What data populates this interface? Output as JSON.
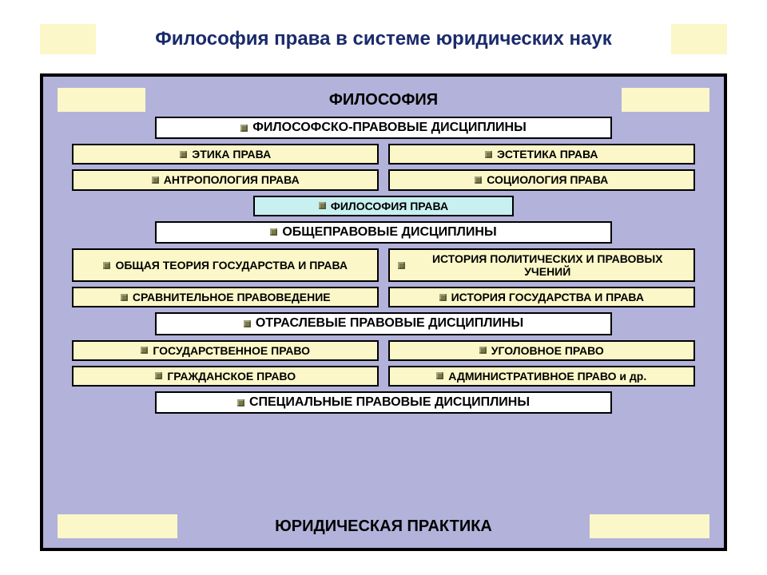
{
  "colors": {
    "page_bg": "#ffffff",
    "band": "#fbf7c8",
    "title_text": "#1a2a6b",
    "frame_bg": "#b2b2da",
    "frame_border": "#000000",
    "frame_border_width": 4,
    "box_cream": "#fbf7c8",
    "box_white": "#ffffff",
    "box_cyan": "#c8f0f0",
    "box_border": "#000000",
    "box_border_width": 2,
    "bullet": "#7a7a48",
    "text": "#000000"
  },
  "typography": {
    "title_fontsize": 24,
    "header_fontsize": 20,
    "category_fontsize": 16,
    "item_fontsize": 14
  },
  "layout": {
    "category_width_pct": 70,
    "item_pair_width_pct": 47,
    "single_center_width_pct": 40
  },
  "title": "Философия права в системе юридических наук",
  "header": "ФИЛОСОФИЯ",
  "footer": "ЮРИДИЧЕСКАЯ ПРАКТИКА",
  "sections": [
    {
      "category": "ФИЛОСОФСКО-ПРАВОВЫЕ ДИСЦИПЛИНЫ",
      "category_bg": "box_white",
      "rows": [
        [
          {
            "label": "ЭТИКА ПРАВА",
            "bg": "box_cream"
          },
          {
            "label": "ЭСТЕТИКА ПРАВА",
            "bg": "box_cream"
          }
        ],
        [
          {
            "label": "АНТРОПОЛОГИЯ ПРАВА",
            "bg": "box_cream"
          },
          {
            "label": "СОЦИОЛОГИЯ ПРАВА",
            "bg": "box_cream"
          }
        ],
        [
          {
            "label": "ФИЛОСОФИЯ ПРАВА",
            "bg": "box_cyan",
            "single": true
          }
        ]
      ]
    },
    {
      "category": "ОБЩЕПРАВОВЫЕ ДИСЦИПЛИНЫ",
      "category_bg": "box_white",
      "rows": [
        [
          {
            "label": "ОБЩАЯ ТЕОРИЯ ГОСУДАРСТВА И ПРАВА",
            "bg": "box_cream",
            "twoLine": true
          },
          {
            "label": "ИСТОРИЯ ПОЛИТИЧЕСКИХ И ПРАВОВЫХ УЧЕНИЙ",
            "bg": "box_cream",
            "twoLine": true
          }
        ],
        [
          {
            "label": "СРАВНИТЕЛЬНОЕ ПРАВОВЕДЕНИЕ",
            "bg": "box_cream"
          },
          {
            "label": "ИСТОРИЯ ГОСУДАРСТВА И ПРАВА",
            "bg": "box_cream"
          }
        ]
      ]
    },
    {
      "category": "ОТРАСЛЕВЫЕ ПРАВОВЫЕ ДИСЦИПЛИНЫ",
      "category_bg": "box_white",
      "rows": [
        [
          {
            "label": "ГОСУДАРСТВЕННОЕ ПРАВО",
            "bg": "box_cream"
          },
          {
            "label": "УГОЛОВНОЕ ПРАВО",
            "bg": "box_cream"
          }
        ],
        [
          {
            "label": "ГРАЖДАНСКОЕ ПРАВО",
            "bg": "box_cream"
          },
          {
            "label": "АДМИНИСТРАТИВНОЕ ПРАВО и др.",
            "bg": "box_cream"
          }
        ]
      ]
    },
    {
      "category": "СПЕЦИАЛЬНЫЕ ПРАВОВЫЕ ДИСЦИПЛИНЫ",
      "category_bg": "box_white",
      "rows": []
    }
  ]
}
